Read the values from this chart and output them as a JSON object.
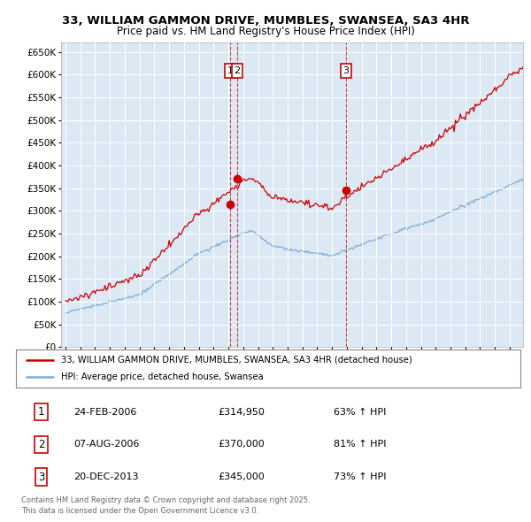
{
  "title_line1": "33, WILLIAM GAMMON DRIVE, MUMBLES, SWANSEA, SA3 4HR",
  "title_line2": "Price paid vs. HM Land Registry's House Price Index (HPI)",
  "bg_color": "#dce9f5",
  "red_color": "#cc0000",
  "blue_color": "#7aadd4",
  "ylim": [
    0,
    670000
  ],
  "ytick_vals": [
    0,
    50000,
    100000,
    150000,
    200000,
    250000,
    300000,
    350000,
    400000,
    450000,
    500000,
    550000,
    600000,
    650000
  ],
  "transactions": [
    {
      "date_num": 2006.12,
      "price": 314950,
      "label": "1"
    },
    {
      "date_num": 2006.6,
      "price": 370000,
      "label": "2"
    },
    {
      "date_num": 2013.95,
      "price": 345000,
      "label": "3"
    }
  ],
  "legend_red": "33, WILLIAM GAMMON DRIVE, MUMBLES, SWANSEA, SA3 4HR (detached house)",
  "legend_blue": "HPI: Average price, detached house, Swansea",
  "table": [
    {
      "num": "1",
      "date": "24-FEB-2006",
      "price": "£314,950",
      "pct": "63% ↑ HPI"
    },
    {
      "num": "2",
      "date": "07-AUG-2006",
      "price": "£370,000",
      "pct": "81% ↑ HPI"
    },
    {
      "num": "3",
      "date": "20-DEC-2013",
      "price": "£345,000",
      "pct": "73% ↑ HPI"
    }
  ],
  "footer": "Contains HM Land Registry data © Crown copyright and database right 2025.\nThis data is licensed under the Open Government Licence v3.0."
}
